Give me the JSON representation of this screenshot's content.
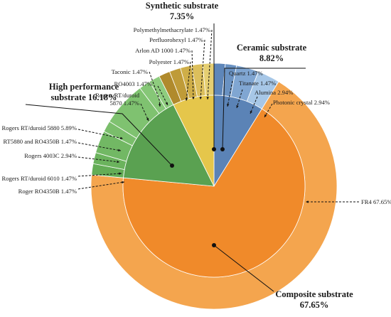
{
  "chart_data": {
    "type": "pie",
    "title": "",
    "categories": [
      {
        "name": "Ceramic substrate",
        "value_label": "8.82%",
        "value": 8.82,
        "color": "#5b83b6",
        "children": [
          {
            "name": "Quartz",
            "pct_label": "1.47%",
            "value": 1.47,
            "color": "#5e86b9"
          },
          {
            "name": "Titanate",
            "pct_label": "1.47%",
            "value": 1.47,
            "color": "#6a92c2"
          },
          {
            "name": "Alumina",
            "pct_label": "2.94%",
            "value": 2.94,
            "color": "#80a6d2"
          },
          {
            "name": "Photonic crystal",
            "pct_label": "2.94%",
            "value": 2.94,
            "color": "#a7c7e7"
          }
        ]
      },
      {
        "name": "Composite substrate",
        "value_label": "67.65%",
        "value": 67.65,
        "color": "#f08a2a",
        "children": [
          {
            "name": "FR4",
            "pct_label": "67.65%",
            "value": 67.65,
            "color": "#f4a54e"
          }
        ]
      },
      {
        "name": "High performance substrate",
        "value_label": "16.18%",
        "value": 16.18,
        "color": "#5aa151",
        "children": [
          {
            "name": "Roger RO4350B",
            "pct_label": "1.47%",
            "value": 1.47,
            "color": "#64ad56"
          },
          {
            "name": "Rogers RT/duroid 6010",
            "pct_label": "1.47%",
            "value": 1.47,
            "color": "#6bb35d"
          },
          {
            "name": "Rogers 4003C",
            "pct_label": "2.94%",
            "value": 2.94,
            "color": "#72b864"
          },
          {
            "name": "RT5880 and RO4350B",
            "pct_label": "1.47%",
            "value": 1.47,
            "color": "#7abe6b"
          },
          {
            "name": "Rogers RT/duroid 5880",
            "pct_label": "5.89%",
            "value": 5.89,
            "color": "#7fc270"
          },
          {
            "name": "Rogers RT/duroid 5870",
            "pct_label": "1.47%",
            "value": 1.47,
            "color": "#86c777"
          },
          {
            "name": "Taconic",
            "pct_label": "1.47%",
            "value": 1.47,
            "color": "#8ecc7e"
          }
        ]
      },
      {
        "name": "Synthetic substrate",
        "value_label": "7.35%",
        "value": 7.35,
        "color": "#e5c64b",
        "children": [
          {
            "name": "RO4003",
            "pct_label": "1.47%",
            "value": 1.47,
            "color": "#b08a2c"
          },
          {
            "name": "Polyester",
            "pct_label": "1.47%",
            "value": 1.47,
            "color": "#bf9b38"
          },
          {
            "name": "Arlon AD 1000",
            "pct_label": "1.47%",
            "value": 1.47,
            "color": "#cfae48"
          },
          {
            "name": "Perfluorohexyl",
            "pct_label": "1.47%",
            "value": 1.47,
            "color": "#dcbf5c"
          },
          {
            "name": "Polymethylmethacrylate",
            "pct_label": "1.47%",
            "value": 1.47,
            "color": "#e6cf72"
          }
        ]
      }
    ]
  }
}
